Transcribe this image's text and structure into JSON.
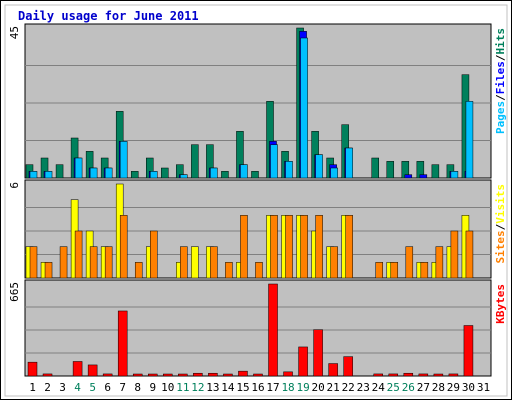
{
  "chart_data": {
    "type": "bar",
    "title": "Daily usage for June 2011",
    "categories": [
      "1",
      "2",
      "3",
      "4",
      "5",
      "6",
      "7",
      "8",
      "9",
      "10",
      "11",
      "12",
      "13",
      "14",
      "15",
      "16",
      "17",
      "18",
      "19",
      "20",
      "21",
      "22",
      "23",
      "24",
      "25",
      "26",
      "27",
      "28",
      "29",
      "30",
      "31"
    ],
    "weekend_categories": [
      "4",
      "5",
      "11",
      "12",
      "18",
      "19",
      "25",
      "26"
    ],
    "colors": {
      "title": "#0000cc",
      "hits": "#00805c",
      "files": "#0000ff",
      "pages": "#00c0ff",
      "visits": "#ffff00",
      "sites": "#ff8000",
      "kbytes": "#ff0000",
      "weekday_label": "#000000",
      "weekend_label": "#00805c",
      "panel_bg": "#c0c0c0"
    },
    "panels": [
      {
        "id": "hits-files-pages",
        "ymax_label": "45",
        "ylim": [
          0,
          45
        ],
        "legend": [
          {
            "label": "Pages",
            "color": "#00c0ff"
          },
          {
            "label": "/",
            "color": "#000000"
          },
          {
            "label": "Files",
            "color": "#0000ff"
          },
          {
            "label": "/",
            "color": "#000000"
          },
          {
            "label": "Hits",
            "color": "#00805c"
          }
        ],
        "series": [
          {
            "name": "Hits",
            "values": [
              4,
              6,
              4,
              12,
              8,
              6,
              20,
              2,
              6,
              3,
              4,
              10,
              10,
              2,
              14,
              2,
              23,
              8,
              45,
              14,
              6,
              16,
              0,
              6,
              5,
              5,
              5,
              4,
              4,
              31,
              0
            ]
          },
          {
            "name": "Files",
            "values": [
              2,
              2,
              0,
              6,
              3,
              3,
              11,
              0,
              2,
              0,
              1,
              0,
              3,
              0,
              4,
              0,
              11,
              5,
              44,
              7,
              4,
              9,
              0,
              0,
              0,
              1,
              1,
              0,
              2,
              2,
              0
            ]
          },
          {
            "name": "Pages",
            "values": [
              2,
              2,
              0,
              6,
              3,
              3,
              11,
              0,
              2,
              0,
              1,
              0,
              3,
              0,
              4,
              0,
              10,
              5,
              42,
              7,
              3,
              9,
              0,
              0,
              0,
              0,
              0,
              0,
              2,
              23,
              0
            ]
          }
        ]
      },
      {
        "id": "visits-sites",
        "ymax_label": "6",
        "ylim": [
          0,
          6
        ],
        "legend": [
          {
            "label": "Sites",
            "color": "#ff8000"
          },
          {
            "label": "/",
            "color": "#000000"
          },
          {
            "label": "Visits",
            "color": "#ffff00"
          }
        ],
        "series": [
          {
            "name": "Visits",
            "values": [
              2,
              1,
              0,
              5,
              3,
              2,
              6,
              0,
              2,
              0,
              1,
              2,
              2,
              0,
              1,
              0,
              4,
              4,
              4,
              3,
              2,
              4,
              0,
              0,
              1,
              0,
              1,
              1,
              2,
              4,
              0
            ]
          },
          {
            "name": "Sites",
            "values": [
              2,
              1,
              2,
              3,
              2,
              2,
              4,
              1,
              3,
              0,
              2,
              0,
              2,
              1,
              4,
              1,
              4,
              4,
              4,
              4,
              2,
              4,
              0,
              1,
              1,
              2,
              1,
              2,
              3,
              3,
              0
            ]
          }
        ]
      },
      {
        "id": "kbytes",
        "ymax_label": "665",
        "ylim": [
          0,
          665
        ],
        "legend": [
          {
            "label": "KBytes",
            "color": "#ff0000"
          }
        ],
        "series": [
          {
            "name": "KBytes",
            "values": [
              100,
              15,
              0,
              105,
              80,
              15,
              470,
              5,
              10,
              5,
              10,
              20,
              20,
              10,
              35,
              5,
              665,
              30,
              210,
              335,
              90,
              140,
              0,
              15,
              15,
              20,
              15,
              10,
              15,
              365,
              0
            ]
          }
        ]
      }
    ]
  }
}
